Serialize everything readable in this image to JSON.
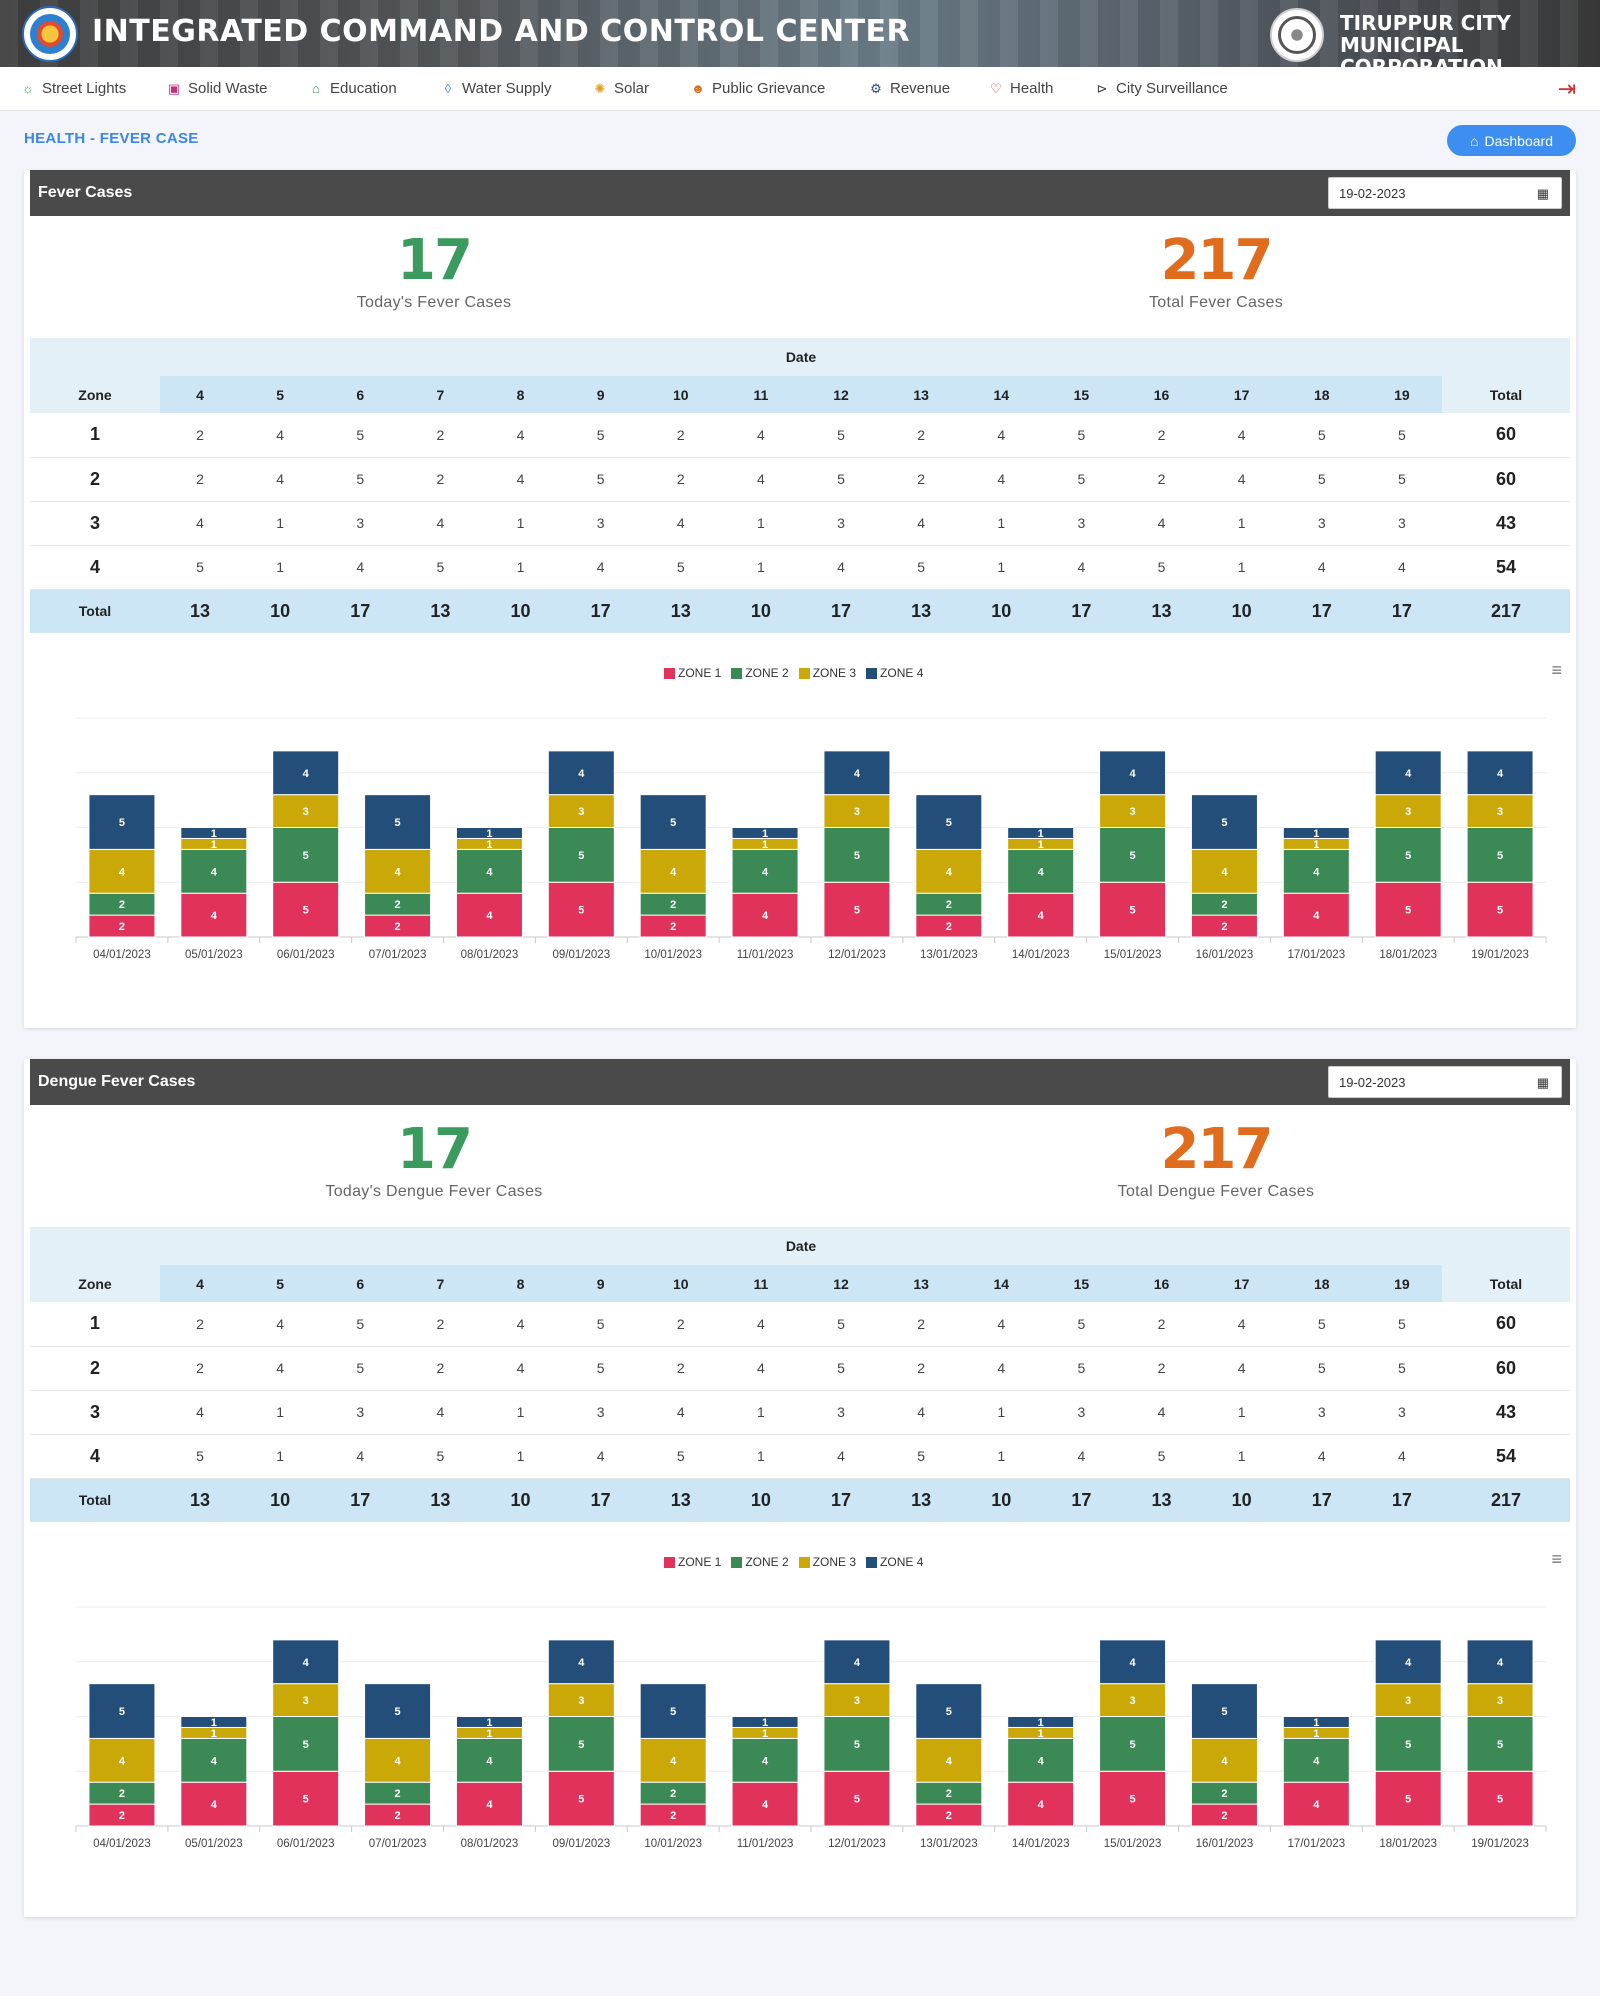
{
  "header": {
    "title": "INTEGRATED COMMAND AND CONTROL CENTER",
    "corp_line1": "TIRUPPUR CITY",
    "corp_line2": "MUNICIPAL CORPORATION"
  },
  "nav": [
    {
      "label": "Street Lights",
      "icon": "street-light-icon",
      "glyph": "☼",
      "color": "#3b9a5e"
    },
    {
      "label": "Solid Waste",
      "icon": "trash-icon",
      "glyph": "▣",
      "color": "#c2317a"
    },
    {
      "label": "Education",
      "icon": "graduation-cap-icon",
      "glyph": "⌂",
      "color": "#3b9a5e"
    },
    {
      "label": "Water Supply",
      "icon": "water-drop-icon",
      "glyph": "◊",
      "color": "#3d8ef0"
    },
    {
      "label": "Solar",
      "icon": "sun-icon",
      "glyph": "✺",
      "color": "#e0a020"
    },
    {
      "label": "Public Grievance",
      "icon": "people-icon",
      "glyph": "☻",
      "color": "#e06d1e"
    },
    {
      "label": "Revenue",
      "icon": "revenue-icon",
      "glyph": "⚙",
      "color": "#2a4a8a"
    },
    {
      "label": "Health",
      "icon": "heart-icon",
      "glyph": "♡",
      "color": "#d62c2c"
    },
    {
      "label": "City Surveillance",
      "icon": "camera-icon",
      "glyph": "⊳",
      "color": "#444"
    }
  ],
  "page": {
    "title": "HEALTH - FEVER CASE",
    "dashboard_label": "Dashboard"
  },
  "colors": {
    "zone1": "#e0325a",
    "zone2": "#3b8a55",
    "zone3": "#c9a807",
    "zone4": "#244e7a"
  },
  "panels": [
    {
      "title": "Fever Cases",
      "date_value": "19-02-2023",
      "today_value": "17",
      "today_label": "Today's Fever Cases",
      "total_value": "217",
      "total_label": "Total Fever Cases"
    },
    {
      "title": "Dengue Fever Cases",
      "date_value": "19-02-2023",
      "today_value": "17",
      "today_label": "Today's Dengue Fever Cases",
      "total_value": "217",
      "total_label": "Total Dengue Fever Cases"
    }
  ],
  "table": {
    "date_header": "Date",
    "zone_header": "Zone",
    "total_header": "Total",
    "total_row_label": "Total",
    "days": [
      "4",
      "5",
      "6",
      "7",
      "8",
      "9",
      "10",
      "11",
      "12",
      "13",
      "14",
      "15",
      "16",
      "17",
      "18",
      "19"
    ],
    "rows": [
      {
        "zone": "1",
        "values": [
          "2",
          "4",
          "5",
          "2",
          "4",
          "5",
          "2",
          "4",
          "5",
          "2",
          "4",
          "5",
          "2",
          "4",
          "5",
          "5"
        ],
        "total": "60"
      },
      {
        "zone": "2",
        "values": [
          "2",
          "4",
          "5",
          "2",
          "4",
          "5",
          "2",
          "4",
          "5",
          "2",
          "4",
          "5",
          "2",
          "4",
          "5",
          "5"
        ],
        "total": "60"
      },
      {
        "zone": "3",
        "values": [
          "4",
          "1",
          "3",
          "4",
          "1",
          "3",
          "4",
          "1",
          "3",
          "4",
          "1",
          "3",
          "4",
          "1",
          "3",
          "3"
        ],
        "total": "43"
      },
      {
        "zone": "4",
        "values": [
          "5",
          "1",
          "4",
          "5",
          "1",
          "4",
          "5",
          "1",
          "4",
          "5",
          "1",
          "4",
          "5",
          "1",
          "4",
          "4"
        ],
        "total": "54"
      }
    ],
    "totals": [
      "13",
      "10",
      "17",
      "13",
      "10",
      "17",
      "13",
      "10",
      "17",
      "13",
      "10",
      "17",
      "13",
      "10",
      "17",
      "17"
    ],
    "grand_total": "217"
  },
  "chart_data": {
    "type": "bar",
    "stacked": true,
    "categories": [
      "04/01/2023",
      "05/01/2023",
      "06/01/2023",
      "07/01/2023",
      "08/01/2023",
      "09/01/2023",
      "10/01/2023",
      "11/01/2023",
      "12/01/2023",
      "13/01/2023",
      "14/01/2023",
      "15/01/2023",
      "16/01/2023",
      "17/01/2023",
      "18/01/2023",
      "19/01/2023"
    ],
    "series": [
      {
        "name": "ZONE 1",
        "values": [
          2,
          4,
          5,
          2,
          4,
          5,
          2,
          4,
          5,
          2,
          4,
          5,
          2,
          4,
          5,
          5
        ]
      },
      {
        "name": "ZONE 2",
        "values": [
          2,
          4,
          5,
          2,
          4,
          5,
          2,
          4,
          5,
          2,
          4,
          5,
          2,
          4,
          5,
          5
        ]
      },
      {
        "name": "ZONE 3",
        "values": [
          4,
          1,
          3,
          4,
          1,
          3,
          4,
          1,
          3,
          4,
          1,
          3,
          4,
          1,
          3,
          3
        ]
      },
      {
        "name": "ZONE 4",
        "values": [
          5,
          1,
          4,
          5,
          1,
          4,
          5,
          1,
          4,
          5,
          1,
          4,
          5,
          1,
          4,
          4
        ]
      }
    ],
    "ylim": [
      0,
      20
    ],
    "grid": true,
    "legend": "top-center",
    "data_labels": true
  }
}
